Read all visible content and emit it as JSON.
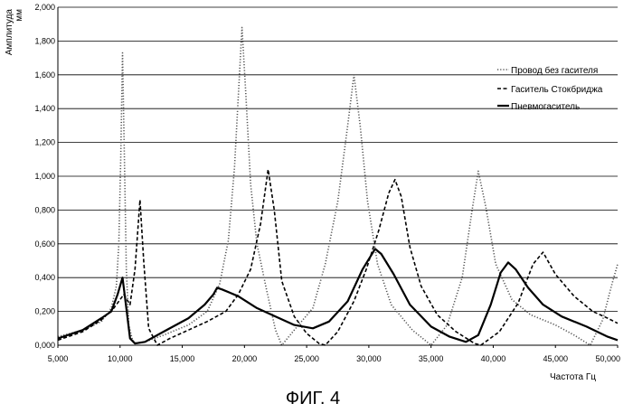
{
  "chart_data": {
    "type": "line",
    "xlabel": "Частота Гц",
    "ylabel": [
      "Амплитуда",
      "мм"
    ],
    "xlim": [
      5000,
      50000
    ],
    "ylim": [
      0,
      2
    ],
    "x_ticks": [
      5000,
      10000,
      15000,
      20000,
      25000,
      30000,
      35000,
      40000,
      45000,
      50000
    ],
    "x_tick_labels": [
      "5,000",
      "10,000",
      "15,000",
      "20,000",
      "25,000",
      "30,000",
      "35,000",
      "40,000",
      "45,000",
      "50,000"
    ],
    "y_ticks": [
      0,
      0.2,
      0.4,
      0.6,
      0.8,
      1.0,
      1.2,
      1.4,
      1.6,
      1.8,
      2.0
    ],
    "y_tick_labels": [
      "0,000",
      "0,200",
      "0,400",
      "0,600",
      "0,800",
      "1,000",
      "1,200",
      "1,400",
      "1,600",
      "1,800",
      "2,000"
    ],
    "grid": "horizontal",
    "legend": "right",
    "series": [
      {
        "name": "Провод без гасителя",
        "style": "dotted",
        "points": [
          [
            5000,
            0.05
          ],
          [
            7000,
            0.09
          ],
          [
            8500,
            0.14
          ],
          [
            9300,
            0.22
          ],
          [
            9700,
            0.35
          ],
          [
            9900,
            0.6
          ],
          [
            10050,
            1.1
          ],
          [
            10200,
            1.73
          ],
          [
            10350,
            1.1
          ],
          [
            10500,
            0.45
          ],
          [
            10700,
            0.12
          ],
          [
            11000,
            0.03
          ],
          [
            11300,
            0.01
          ],
          [
            12000,
            0.02
          ],
          [
            13500,
            0.06
          ],
          [
            15500,
            0.12
          ],
          [
            17000,
            0.2
          ],
          [
            18000,
            0.36
          ],
          [
            18700,
            0.62
          ],
          [
            19200,
            1.05
          ],
          [
            19600,
            1.6
          ],
          [
            19800,
            1.88
          ],
          [
            20100,
            1.5
          ],
          [
            20500,
            0.95
          ],
          [
            21000,
            0.6
          ],
          [
            21800,
            0.32
          ],
          [
            22500,
            0.09
          ],
          [
            23000,
            0.0
          ],
          [
            24000,
            0.09
          ],
          [
            25500,
            0.22
          ],
          [
            26500,
            0.48
          ],
          [
            27500,
            0.85
          ],
          [
            28300,
            1.3
          ],
          [
            28800,
            1.6
          ],
          [
            29300,
            1.3
          ],
          [
            29900,
            0.85
          ],
          [
            30700,
            0.48
          ],
          [
            31800,
            0.24
          ],
          [
            33500,
            0.09
          ],
          [
            35000,
            0.0
          ],
          [
            36300,
            0.12
          ],
          [
            37500,
            0.4
          ],
          [
            38300,
            0.8
          ],
          [
            38800,
            1.03
          ],
          [
            39400,
            0.82
          ],
          [
            40200,
            0.48
          ],
          [
            41500,
            0.27
          ],
          [
            43000,
            0.18
          ],
          [
            45000,
            0.12
          ],
          [
            46500,
            0.06
          ],
          [
            47800,
            0.0
          ],
          [
            48800,
            0.15
          ],
          [
            49500,
            0.35
          ],
          [
            50000,
            0.48
          ]
        ]
      },
      {
        "name": "Гаситель Стокбриджа",
        "style": "dashed",
        "points": [
          [
            5000,
            0.03
          ],
          [
            7000,
            0.08
          ],
          [
            8500,
            0.15
          ],
          [
            9500,
            0.22
          ],
          [
            10300,
            0.3
          ],
          [
            10800,
            0.24
          ],
          [
            11200,
            0.45
          ],
          [
            11600,
            0.86
          ],
          [
            11900,
            0.5
          ],
          [
            12300,
            0.1
          ],
          [
            13000,
            0.0
          ],
          [
            14000,
            0.04
          ],
          [
            15500,
            0.09
          ],
          [
            17000,
            0.14
          ],
          [
            18500,
            0.2
          ],
          [
            19500,
            0.3
          ],
          [
            20500,
            0.45
          ],
          [
            21300,
            0.72
          ],
          [
            21900,
            1.04
          ],
          [
            22400,
            0.8
          ],
          [
            23000,
            0.38
          ],
          [
            24000,
            0.17
          ],
          [
            25000,
            0.07
          ],
          [
            26000,
            0.01
          ],
          [
            26500,
            0.0
          ],
          [
            27500,
            0.08
          ],
          [
            28800,
            0.26
          ],
          [
            29800,
            0.45
          ],
          [
            30800,
            0.68
          ],
          [
            31600,
            0.9
          ],
          [
            32100,
            0.98
          ],
          [
            32600,
            0.88
          ],
          [
            33300,
            0.58
          ],
          [
            34200,
            0.35
          ],
          [
            35500,
            0.18
          ],
          [
            37000,
            0.08
          ],
          [
            38500,
            0.01
          ],
          [
            39000,
            0.0
          ],
          [
            40500,
            0.08
          ],
          [
            42000,
            0.25
          ],
          [
            43200,
            0.48
          ],
          [
            44000,
            0.55
          ],
          [
            45000,
            0.42
          ],
          [
            46500,
            0.29
          ],
          [
            48000,
            0.2
          ],
          [
            49200,
            0.16
          ],
          [
            50000,
            0.13
          ]
        ]
      },
      {
        "name": "Пневмогаситель",
        "style": "solid",
        "points": [
          [
            5000,
            0.04
          ],
          [
            7000,
            0.09
          ],
          [
            8500,
            0.16
          ],
          [
            9300,
            0.2
          ],
          [
            9800,
            0.3
          ],
          [
            10200,
            0.4
          ],
          [
            10500,
            0.22
          ],
          [
            10800,
            0.04
          ],
          [
            11200,
            0.01
          ],
          [
            12000,
            0.02
          ],
          [
            13500,
            0.08
          ],
          [
            15500,
            0.16
          ],
          [
            16800,
            0.24
          ],
          [
            17500,
            0.3
          ],
          [
            17800,
            0.34
          ],
          [
            18200,
            0.33
          ],
          [
            19500,
            0.29
          ],
          [
            21000,
            0.22
          ],
          [
            22500,
            0.17
          ],
          [
            24000,
            0.12
          ],
          [
            25500,
            0.1
          ],
          [
            26800,
            0.14
          ],
          [
            28300,
            0.26
          ],
          [
            29500,
            0.45
          ],
          [
            30500,
            0.57
          ],
          [
            31000,
            0.54
          ],
          [
            32000,
            0.42
          ],
          [
            33300,
            0.24
          ],
          [
            35000,
            0.11
          ],
          [
            36500,
            0.05
          ],
          [
            37800,
            0.02
          ],
          [
            38800,
            0.06
          ],
          [
            39800,
            0.24
          ],
          [
            40600,
            0.43
          ],
          [
            41200,
            0.49
          ],
          [
            41800,
            0.45
          ],
          [
            42800,
            0.34
          ],
          [
            44000,
            0.24
          ],
          [
            45500,
            0.17
          ],
          [
            47500,
            0.11
          ],
          [
            49200,
            0.05
          ],
          [
            50000,
            0.03
          ]
        ]
      }
    ]
  },
  "figure_caption": "ФИГ. 4"
}
